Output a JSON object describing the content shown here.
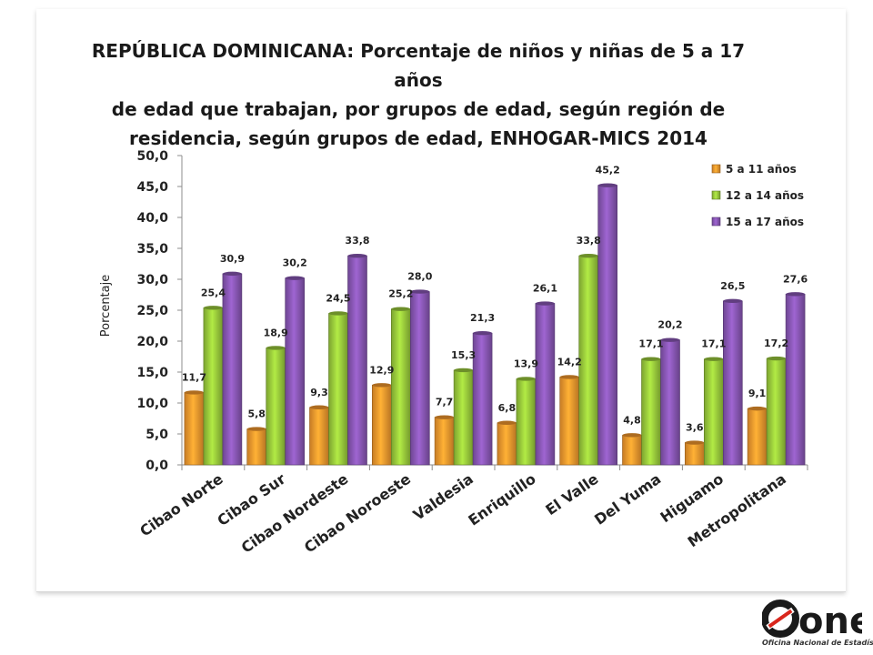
{
  "chart_data": {
    "type": "bar",
    "title": "REPÚBLICA DOMINICANA: Porcentaje de niños y niñas de 5 a 17 años\nde edad que trabajan,  por grupos de edad, según región de\nresidencia, según grupos de edad, ENHOGAR-MICS 2014",
    "ylabel": "Porcentaje",
    "xlabel": "",
    "ylim": [
      0,
      50
    ],
    "yticks": [
      "0,0",
      "5,0",
      "10,0",
      "15,0",
      "20,0",
      "25,0",
      "30,0",
      "35,0",
      "40,0",
      "45,0",
      "50,0"
    ],
    "grid": false,
    "legend_position": "top-right",
    "categories": [
      "Cibao Norte",
      "Cibao Sur",
      "Cibao Nordeste",
      "Cibao Noroeste",
      "Valdesia",
      "Enriquillo",
      "El Valle",
      "Del Yuma",
      "Higuamo",
      "Metropolitana"
    ],
    "series": [
      {
        "name": "5 a 11 años",
        "color": "#f79a2e",
        "values": [
          11.7,
          5.8,
          9.3,
          12.9,
          7.7,
          6.8,
          14.2,
          4.8,
          3.6,
          9.1
        ],
        "labels": [
          "11,7",
          "5,8",
          "9,3",
          "12,9",
          "7,7",
          "6,8",
          "14,2",
          "4,8",
          "3,6",
          "9,1"
        ]
      },
      {
        "name": "12 a 14 años",
        "color": "#9bcc3c",
        "values": [
          25.4,
          18.9,
          24.5,
          25.2,
          15.3,
          13.9,
          33.8,
          17.1,
          17.1,
          17.2
        ],
        "labels": [
          "25,4",
          "18,9",
          "24,5",
          "25,2",
          "15,3",
          "13,9",
          "33,8",
          "17,1",
          "17,1",
          "17,2"
        ]
      },
      {
        "name": "15 a 17 años",
        "color": "#8a58b7",
        "values": [
          30.9,
          30.2,
          33.8,
          28.0,
          21.3,
          26.1,
          45.2,
          20.2,
          26.5,
          27.6
        ],
        "labels": [
          "30,9",
          "30,2",
          "33,8",
          "28,0",
          "21,3",
          "26,1",
          "45,2",
          "20,2",
          "26,5",
          "27,6"
        ]
      }
    ]
  },
  "logo": {
    "text": "one",
    "subtitle": "Oficina Nacional de Estadística",
    "color": "#1a1a1a",
    "accent": "#d9261c"
  }
}
